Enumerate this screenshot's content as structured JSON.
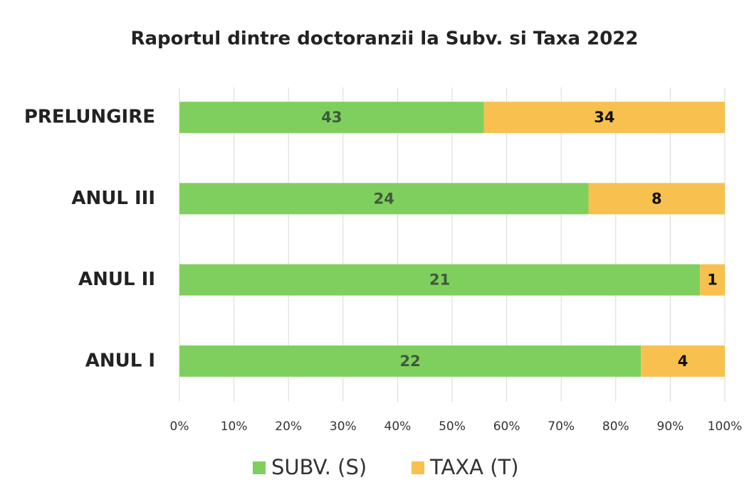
{
  "chart_data": {
    "type": "bar",
    "orientation": "horizontal",
    "stacked": "percent",
    "title": "Raportul dintre doctoranzii la Subv. si Taxa 2022",
    "categories": [
      "PRELUNGIRE",
      "ANUL III",
      "ANUL II",
      "ANUL I"
    ],
    "series": [
      {
        "name": "SUBV. (S)",
        "color": "#7fcf5e",
        "values": [
          43,
          24,
          21,
          22
        ]
      },
      {
        "name": "TAXA (T)",
        "color": "#f8c04e",
        "values": [
          34,
          8,
          1,
          4
        ]
      }
    ],
    "xlim": [
      0,
      100
    ],
    "xticks": [
      {
        "value": 0,
        "label": "0%"
      },
      {
        "value": 10,
        "label": "10%"
      },
      {
        "value": 20,
        "label": "20%"
      },
      {
        "value": 30,
        "label": "30%"
      },
      {
        "value": 40,
        "label": "40%"
      },
      {
        "value": 50,
        "label": "50%"
      },
      {
        "value": 60,
        "label": "60%"
      },
      {
        "value": 70,
        "label": "70%"
      },
      {
        "value": 80,
        "label": "80%"
      },
      {
        "value": 90,
        "label": "90%"
      },
      {
        "value": 100,
        "label": "100%"
      }
    ],
    "grid": true,
    "legend": "bottom"
  }
}
